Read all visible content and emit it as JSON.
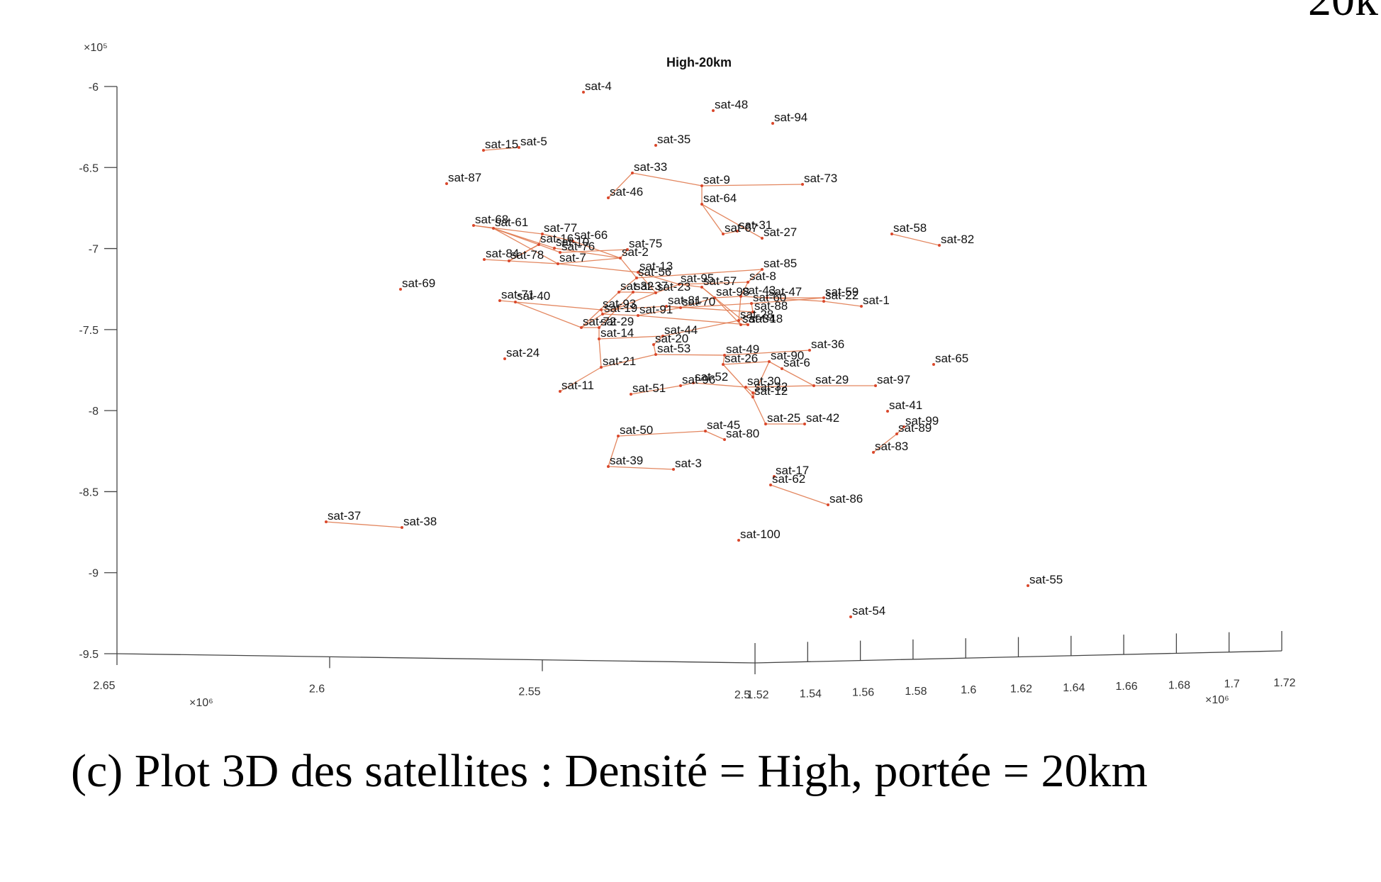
{
  "caption": "(c) Plot 3D des satellites : Densité = High, portée = 20km",
  "corner_fragment": "20k",
  "colors": {
    "link": "#e07a4f",
    "point": "#d9472b",
    "axis": "#444444"
  },
  "chart_data": {
    "type": "scatter",
    "title": "High-20km",
    "y_axis": {
      "ticks": [
        "-6",
        "-6.5",
        "-7",
        "-7.5",
        "-8",
        "-8.5",
        "-9",
        "-9.5"
      ],
      "exponent": "×10⁵",
      "range": [
        -9.5,
        -6
      ]
    },
    "x_axis": {
      "ticks": [
        "2.65",
        "2.6",
        "2.55",
        "2.5"
      ],
      "exponent": "×10⁶",
      "range": [
        2.5,
        2.65
      ]
    },
    "z_axis": {
      "ticks": [
        "1.52",
        "1.54",
        "1.56",
        "1.58",
        "1.6",
        "1.62",
        "1.64",
        "1.66",
        "1.68",
        "1.7",
        "1.72"
      ],
      "exponent": "×10⁶",
      "range": [
        1.52,
        1.72
      ]
    },
    "points": [
      {
        "name": "sat-4",
        "u": 823,
        "v": 130
      },
      {
        "name": "sat-48",
        "u": 1006,
        "v": 156
      },
      {
        "name": "sat-94",
        "u": 1090,
        "v": 174
      },
      {
        "name": "sat-15",
        "u": 682,
        "v": 212
      },
      {
        "name": "sat-5",
        "u": 732,
        "v": 208
      },
      {
        "name": "sat-35",
        "u": 925,
        "v": 205
      },
      {
        "name": "sat-33",
        "u": 892,
        "v": 244
      },
      {
        "name": "sat-87",
        "u": 630,
        "v": 259
      },
      {
        "name": "sat-9",
        "u": 990,
        "v": 262
      },
      {
        "name": "sat-73",
        "u": 1132,
        "v": 260
      },
      {
        "name": "sat-46",
        "u": 858,
        "v": 279
      },
      {
        "name": "sat-64",
        "u": 990,
        "v": 288
      },
      {
        "name": "sat-68",
        "u": 668,
        "v": 318
      },
      {
        "name": "sat-61",
        "u": 696,
        "v": 322
      },
      {
        "name": "sat-77",
        "u": 765,
        "v": 330
      },
      {
        "name": "sat-31",
        "u": 1040,
        "v": 326
      },
      {
        "name": "sat-67",
        "u": 1020,
        "v": 330
      },
      {
        "name": "sat-27",
        "u": 1075,
        "v": 336
      },
      {
        "name": "sat-58",
        "u": 1258,
        "v": 330
      },
      {
        "name": "sat-82",
        "u": 1325,
        "v": 346
      },
      {
        "name": "sat-16",
        "u": 760,
        "v": 345
      },
      {
        "name": "sat-66",
        "u": 808,
        "v": 340
      },
      {
        "name": "sat-10",
        "u": 782,
        "v": 350
      },
      {
        "name": "sat-76",
        "u": 790,
        "v": 356
      },
      {
        "name": "sat-75",
        "u": 885,
        "v": 352
      },
      {
        "name": "sat-84",
        "u": 683,
        "v": 366
      },
      {
        "name": "sat-78",
        "u": 718,
        "v": 368
      },
      {
        "name": "sat-7",
        "u": 787,
        "v": 372
      },
      {
        "name": "sat-2",
        "u": 875,
        "v": 364
      },
      {
        "name": "sat-69",
        "u": 565,
        "v": 408
      },
      {
        "name": "sat-85",
        "u": 1075,
        "v": 380
      },
      {
        "name": "sat-13",
        "u": 900,
        "v": 384
      },
      {
        "name": "sat-56",
        "u": 898,
        "v": 392
      },
      {
        "name": "sat-8",
        "u": 1055,
        "v": 398
      },
      {
        "name": "sat-95",
        "u": 958,
        "v": 401
      },
      {
        "name": "sat-57",
        "u": 990,
        "v": 405
      },
      {
        "name": "sat-32",
        "u": 873,
        "v": 412
      },
      {
        "name": "sat-37",
        "u": 893,
        "v": 412
      },
      {
        "name": "sat-23",
        "u": 925,
        "v": 413
      },
      {
        "name": "sat-98",
        "u": 1008,
        "v": 420
      },
      {
        "name": "sat-43",
        "u": 1045,
        "v": 418
      },
      {
        "name": "sat-47",
        "u": 1082,
        "v": 420
      },
      {
        "name": "sat-59",
        "u": 1162,
        "v": 420
      },
      {
        "name": "sat-22",
        "u": 1162,
        "v": 425
      },
      {
        "name": "sat-1",
        "u": 1215,
        "v": 432
      },
      {
        "name": "sat-71",
        "u": 705,
        "v": 424
      },
      {
        "name": "sat-40",
        "u": 727,
        "v": 426
      },
      {
        "name": "sat-60",
        "u": 1060,
        "v": 428
      },
      {
        "name": "sat-93",
        "u": 848,
        "v": 437
      },
      {
        "name": "sat-81",
        "u": 940,
        "v": 432
      },
      {
        "name": "sat-70",
        "u": 960,
        "v": 434
      },
      {
        "name": "sat-88",
        "u": 1062,
        "v": 440
      },
      {
        "name": "sat-19",
        "u": 850,
        "v": 443
      },
      {
        "name": "sat-91",
        "u": 900,
        "v": 445
      },
      {
        "name": "sat-28",
        "u": 1042,
        "v": 452
      },
      {
        "name": "sat-34",
        "u": 1045,
        "v": 458
      },
      {
        "name": "sat-18",
        "u": 1055,
        "v": 458
      },
      {
        "name": "sat-72",
        "u": 820,
        "v": 462
      },
      {
        "name": "sat-29",
        "u": 845,
        "v": 462
      },
      {
        "name": "sat-14",
        "u": 845,
        "v": 478
      },
      {
        "name": "sat-44",
        "u": 935,
        "v": 474
      },
      {
        "name": "sat-20",
        "u": 922,
        "v": 486
      },
      {
        "name": "sat-36",
        "u": 1142,
        "v": 494
      },
      {
        "name": "sat-24",
        "u": 712,
        "v": 506
      },
      {
        "name": "sat-53",
        "u": 925,
        "v": 500
      },
      {
        "name": "sat-49",
        "u": 1022,
        "v": 501
      },
      {
        "name": "sat-65",
        "u": 1317,
        "v": 514
      },
      {
        "name": "sat-90",
        "u": 1085,
        "v": 510
      },
      {
        "name": "sat-26",
        "u": 1020,
        "v": 514
      },
      {
        "name": "sat-6",
        "u": 1103,
        "v": 520
      },
      {
        "name": "sat-21",
        "u": 848,
        "v": 518
      },
      {
        "name": "sat-52",
        "u": 978,
        "v": 540
      },
      {
        "name": "sat-96",
        "u": 960,
        "v": 544
      },
      {
        "name": "sat-30",
        "u": 1052,
        "v": 546
      },
      {
        "name": "sat-29b",
        "u": 1148,
        "v": 544
      },
      {
        "name": "sat-97",
        "u": 1235,
        "v": 544
      },
      {
        "name": "sat-11",
        "u": 790,
        "v": 552
      },
      {
        "name": "sat-51",
        "u": 890,
        "v": 556
      },
      {
        "name": "sat-32b",
        "u": 1062,
        "v": 554
      },
      {
        "name": "sat-12",
        "u": 1062,
        "v": 560
      },
      {
        "name": "sat-41",
        "u": 1252,
        "v": 580
      },
      {
        "name": "sat-25",
        "u": 1080,
        "v": 598
      },
      {
        "name": "sat-42",
        "u": 1135,
        "v": 598
      },
      {
        "name": "sat-99",
        "u": 1275,
        "v": 602
      },
      {
        "name": "sat-89",
        "u": 1265,
        "v": 612
      },
      {
        "name": "sat-45",
        "u": 995,
        "v": 608
      },
      {
        "name": "sat-50",
        "u": 872,
        "v": 615
      },
      {
        "name": "sat-80",
        "u": 1022,
        "v": 620
      },
      {
        "name": "sat-83",
        "u": 1232,
        "v": 638
      },
      {
        "name": "sat-39",
        "u": 858,
        "v": 658
      },
      {
        "name": "sat-3",
        "u": 950,
        "v": 662
      },
      {
        "name": "sat-17",
        "u": 1092,
        "v": 672
      },
      {
        "name": "sat-62",
        "u": 1087,
        "v": 684
      },
      {
        "name": "sat-86",
        "u": 1168,
        "v": 712
      },
      {
        "name": "sat-37b",
        "u": 460,
        "v": 736
      },
      {
        "name": "sat-38",
        "u": 567,
        "v": 744
      },
      {
        "name": "sat-100",
        "u": 1042,
        "v": 762
      },
      {
        "name": "sat-55",
        "u": 1450,
        "v": 826
      },
      {
        "name": "sat-54",
        "u": 1200,
        "v": 870
      }
    ],
    "labels": [
      "sat-4",
      "sat-48",
      "sat-94",
      "sat-15",
      "sat-5",
      "sat-35",
      "sat-33",
      "sat-87",
      "sat-9",
      "sat-73",
      "sat-46",
      "sat-64",
      "sat-68",
      "sat-61",
      "sat-77",
      "sat-31",
      "sat-67",
      "sat-27",
      "sat-58",
      "sat-82",
      "sat-16",
      "sat-66",
      "sat-10",
      "sat-76",
      "sat-75",
      "sat-84",
      "sat-78",
      "sat-7",
      "sat-2",
      "sat-69",
      "sat-85",
      "sat-13",
      "sat-56",
      "sat-8",
      "sat-95",
      "sat-57",
      "sat-32",
      "sat-37",
      "sat-23",
      "sat-98",
      "sat-43",
      "sat-47",
      "sat-59",
      "sat-22",
      "sat-1",
      "sat-71",
      "sat-40",
      "sat-60",
      "sat-93",
      "sat-81",
      "sat-70",
      "sat-88",
      "sat-19",
      "sat-91",
      "sat-28",
      "sat-34",
      "sat-18",
      "sat-72",
      "sat-29",
      "sat-14",
      "sat-44",
      "sat-20",
      "sat-36",
      "sat-24",
      "sat-53",
      "sat-49",
      "sat-65",
      "sat-90",
      "sat-26",
      "sat-6",
      "sat-21",
      "sat-52",
      "sat-96",
      "sat-30",
      "sat-29",
      "sat-97",
      "sat-11",
      "sat-51",
      "sat-32",
      "sat-12",
      "sat-41",
      "sat-25",
      "sat-42",
      "sat-99",
      "sat-89",
      "sat-45",
      "sat-50",
      "sat-80",
      "sat-83",
      "sat-39",
      "sat-3",
      "sat-17",
      "sat-62",
      "sat-86",
      "sat-37",
      "sat-38",
      "sat-100",
      "sat-55",
      "sat-54"
    ],
    "links": [
      [
        "sat-15",
        "sat-5"
      ],
      [
        "sat-33",
        "sat-46"
      ],
      [
        "sat-33",
        "sat-9"
      ],
      [
        "sat-9",
        "sat-73"
      ],
      [
        "sat-9",
        "sat-64"
      ],
      [
        "sat-64",
        "sat-67"
      ],
      [
        "sat-64",
        "sat-27"
      ],
      [
        "sat-67",
        "sat-31"
      ],
      [
        "sat-58",
        "sat-82"
      ],
      [
        "sat-68",
        "sat-61"
      ],
      [
        "sat-68",
        "sat-77"
      ],
      [
        "sat-61",
        "sat-16"
      ],
      [
        "sat-61",
        "sat-10"
      ],
      [
        "sat-61",
        "sat-7"
      ],
      [
        "sat-77",
        "sat-66"
      ],
      [
        "sat-77",
        "sat-16"
      ],
      [
        "sat-16",
        "sat-76"
      ],
      [
        "sat-16",
        "sat-78"
      ],
      [
        "sat-10",
        "sat-2"
      ],
      [
        "sat-76",
        "sat-75"
      ],
      [
        "sat-66",
        "sat-2"
      ],
      [
        "sat-84",
        "sat-78"
      ],
      [
        "sat-78",
        "sat-7"
      ],
      [
        "sat-78",
        "sat-16"
      ],
      [
        "sat-7",
        "sat-2"
      ],
      [
        "sat-7",
        "sat-13"
      ],
      [
        "sat-2",
        "sat-56"
      ],
      [
        "sat-75",
        "sat-2"
      ],
      [
        "sat-85",
        "sat-8"
      ],
      [
        "sat-85",
        "sat-56"
      ],
      [
        "sat-8",
        "sat-95"
      ],
      [
        "sat-8",
        "sat-43"
      ],
      [
        "sat-56",
        "sat-32"
      ],
      [
        "sat-13",
        "sat-23"
      ],
      [
        "sat-32",
        "sat-37"
      ],
      [
        "sat-37",
        "sat-23"
      ],
      [
        "sat-23",
        "sat-95"
      ],
      [
        "sat-95",
        "sat-57"
      ],
      [
        "sat-57",
        "sat-98"
      ],
      [
        "sat-98",
        "sat-43"
      ],
      [
        "sat-43",
        "sat-47"
      ],
      [
        "sat-47",
        "sat-59"
      ],
      [
        "sat-47",
        "sat-22"
      ],
      [
        "sat-22",
        "sat-1"
      ],
      [
        "sat-59",
        "sat-60"
      ],
      [
        "sat-60",
        "sat-88"
      ],
      [
        "sat-88",
        "sat-28"
      ],
      [
        "sat-28",
        "sat-34"
      ],
      [
        "sat-34",
        "sat-18"
      ],
      [
        "sat-43",
        "sat-28"
      ],
      [
        "sat-98",
        "sat-34"
      ],
      [
        "sat-57",
        "sat-18"
      ],
      [
        "sat-71",
        "sat-40"
      ],
      [
        "sat-40",
        "sat-93"
      ],
      [
        "sat-40",
        "sat-72"
      ],
      [
        "sat-93",
        "sat-19"
      ],
      [
        "sat-93",
        "sat-81"
      ],
      [
        "sat-81",
        "sat-70"
      ],
      [
        "sat-70",
        "sat-98"
      ],
      [
        "sat-19",
        "sat-91"
      ],
      [
        "sat-91",
        "sat-70"
      ],
      [
        "sat-19",
        "sat-72"
      ],
      [
        "sat-72",
        "sat-29"
      ],
      [
        "sat-29",
        "sat-14"
      ],
      [
        "sat-14",
        "sat-44"
      ],
      [
        "sat-44",
        "sat-28"
      ],
      [
        "sat-44",
        "sat-20"
      ],
      [
        "sat-20",
        "sat-53"
      ],
      [
        "sat-53",
        "sat-49"
      ],
      [
        "sat-49",
        "sat-36"
      ],
      [
        "sat-49",
        "sat-26"
      ],
      [
        "sat-26",
        "sat-90"
      ],
      [
        "sat-90",
        "sat-6"
      ],
      [
        "sat-14",
        "sat-21"
      ],
      [
        "sat-21",
        "sat-53"
      ],
      [
        "sat-11",
        "sat-21"
      ],
      [
        "sat-51",
        "sat-96"
      ],
      [
        "sat-96",
        "sat-52"
      ],
      [
        "sat-52",
        "sat-30"
      ],
      [
        "sat-30",
        "sat-29b"
      ],
      [
        "sat-29b",
        "sat-97"
      ],
      [
        "sat-30",
        "sat-32b"
      ],
      [
        "sat-32b",
        "sat-12"
      ],
      [
        "sat-12",
        "sat-90"
      ],
      [
        "sat-6",
        "sat-29b"
      ],
      [
        "sat-26",
        "sat-12"
      ],
      [
        "sat-12",
        "sat-25"
      ],
      [
        "sat-25",
        "sat-42"
      ],
      [
        "sat-99",
        "sat-89"
      ],
      [
        "sat-89",
        "sat-83"
      ],
      [
        "sat-50",
        "sat-45"
      ],
      [
        "sat-45",
        "sat-80"
      ],
      [
        "sat-50",
        "sat-39"
      ],
      [
        "sat-39",
        "sat-3"
      ],
      [
        "sat-62",
        "sat-86"
      ],
      [
        "sat-37b",
        "sat-38"
      ],
      [
        "sat-32",
        "sat-72"
      ],
      [
        "sat-23",
        "sat-19"
      ],
      [
        "sat-81",
        "sat-88"
      ],
      [
        "sat-13",
        "sat-95"
      ],
      [
        "sat-37",
        "sat-29"
      ],
      [
        "sat-91",
        "sat-18"
      ],
      [
        "sat-70",
        "sat-60"
      ]
    ]
  }
}
